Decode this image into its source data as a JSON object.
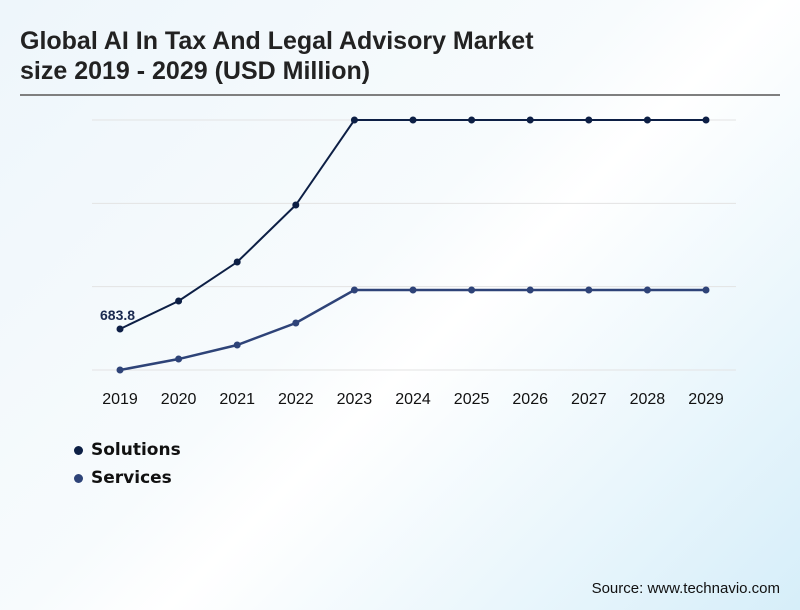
{
  "title_line1": "Global AI In Tax And Legal Advisory Market",
  "title_line2": "size 2019 - 2029 (USD Million)",
  "source": "Source: www.technavio.com",
  "colors": {
    "solutions": "#0d1f45",
    "services": "#2e4378",
    "grid": "#e3e3e3"
  },
  "chart_data": {
    "type": "line",
    "title": "Global AI In Tax And Legal Advisory Market size 2019 - 2029 (USD Million)",
    "xlabel": "",
    "ylabel": "",
    "categories": [
      "2019",
      "2020",
      "2021",
      "2022",
      "2023",
      "2024",
      "2025",
      "2026",
      "2027",
      "2028",
      "2029"
    ],
    "ylim": [
      0,
      4170
    ],
    "grid": true,
    "legend_position": "bottom-left",
    "series": [
      {
        "name": "Solutions",
        "values": [
          683.8,
          1151,
          1801,
          2752,
          4170,
          4170,
          4170,
          4170,
          4170,
          4170,
          4170
        ]
      },
      {
        "name": "Services",
        "values": [
          0,
          183,
          417,
          784,
          1334,
          1334,
          1334,
          1334,
          1334,
          1334,
          1334
        ]
      }
    ],
    "annotations": [
      {
        "series": "Solutions",
        "x": "2019",
        "text": "683.8"
      }
    ]
  }
}
